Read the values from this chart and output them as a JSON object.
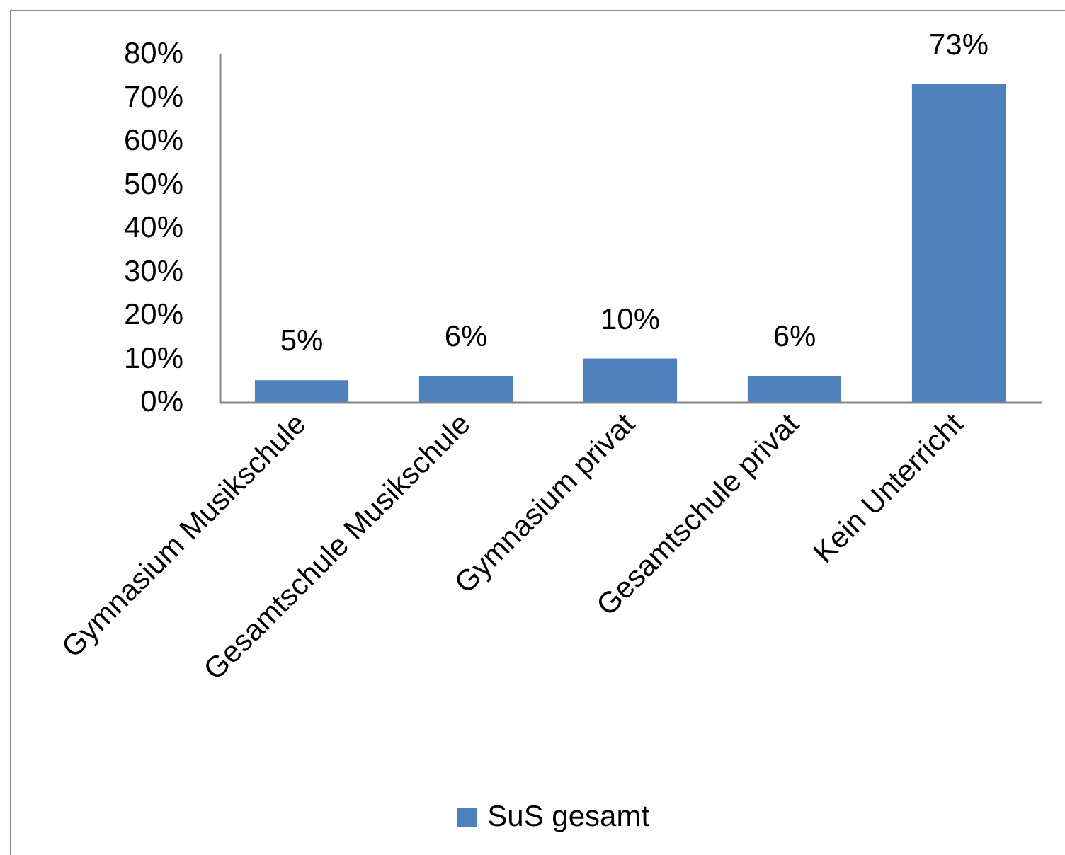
{
  "chart_data": {
    "type": "bar",
    "categories": [
      "Gymnasium Musikschule",
      "Gesamtschule Musikschule",
      "Gymnasium privat",
      "Gesamtschule privat",
      "Kein Unterricht"
    ],
    "series": [
      {
        "name": "SuS gesamt",
        "color": "#4f81bd",
        "values": [
          5,
          6,
          10,
          6,
          73
        ],
        "value_labels": [
          "5%",
          "6%",
          "10%",
          "6%",
          "73%"
        ]
      }
    ],
    "ylim": [
      0,
      80
    ],
    "yticks": [
      {
        "value": 0,
        "label": "0%"
      },
      {
        "value": 10,
        "label": "10%"
      },
      {
        "value": 20,
        "label": "20%"
      },
      {
        "value": 30,
        "label": "30%"
      },
      {
        "value": 40,
        "label": "40%"
      },
      {
        "value": 50,
        "label": "50%"
      },
      {
        "value": 60,
        "label": "60%"
      },
      {
        "value": 70,
        "label": "70%"
      },
      {
        "value": 80,
        "label": "80%"
      }
    ],
    "legend": "bottom"
  }
}
